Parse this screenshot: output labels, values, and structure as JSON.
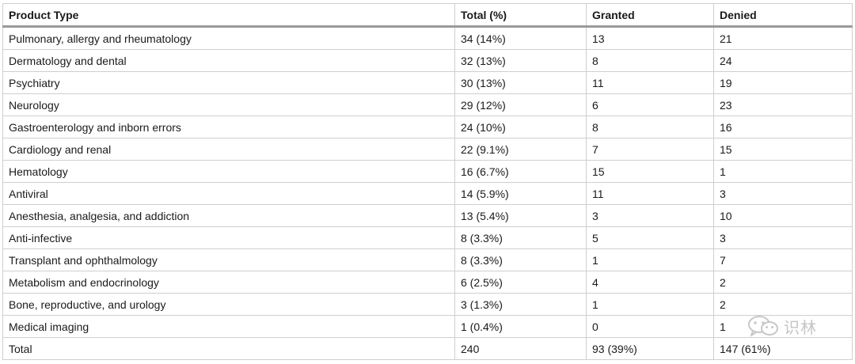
{
  "table": {
    "headers": [
      "Product Type",
      "Total (%)",
      "Granted",
      "Denied"
    ],
    "rows": [
      [
        "Pulmonary, allergy and rheumatology",
        "34 (14%)",
        "13",
        "21"
      ],
      [
        "Dermatology and dental",
        "32 (13%)",
        "8",
        "24"
      ],
      [
        "Psychiatry",
        "30 (13%)",
        "11",
        "19"
      ],
      [
        "Neurology",
        "29 (12%)",
        "6",
        "23"
      ],
      [
        "Gastroenterology and inborn errors",
        "24 (10%)",
        "8",
        "16"
      ],
      [
        "Cardiology and renal",
        "22 (9.1%)",
        "7",
        "15"
      ],
      [
        "Hematology",
        "16 (6.7%)",
        "15",
        "1"
      ],
      [
        "Antiviral",
        "14 (5.9%)",
        "11",
        "3"
      ],
      [
        "Anesthesia, analgesia, and addiction",
        "13 (5.4%)",
        "3",
        "10"
      ],
      [
        "Anti-infective",
        "8 (3.3%)",
        "5",
        "3"
      ],
      [
        "Transplant and ophthalmology",
        "8 (3.3%)",
        "1",
        "7"
      ],
      [
        "Metabolism and endocrinology",
        "6 (2.5%)",
        "4",
        "2"
      ],
      [
        "Bone, reproductive, and urology",
        "3 (1.3%)",
        "1",
        "2"
      ],
      [
        "Medical imaging",
        "1 (0.4%)",
        "0",
        "1"
      ],
      [
        "Total",
        "240",
        "93 (39%)",
        "147 (61%)"
      ]
    ]
  },
  "watermark": {
    "icon": "wechat-icon",
    "text": "识林"
  }
}
